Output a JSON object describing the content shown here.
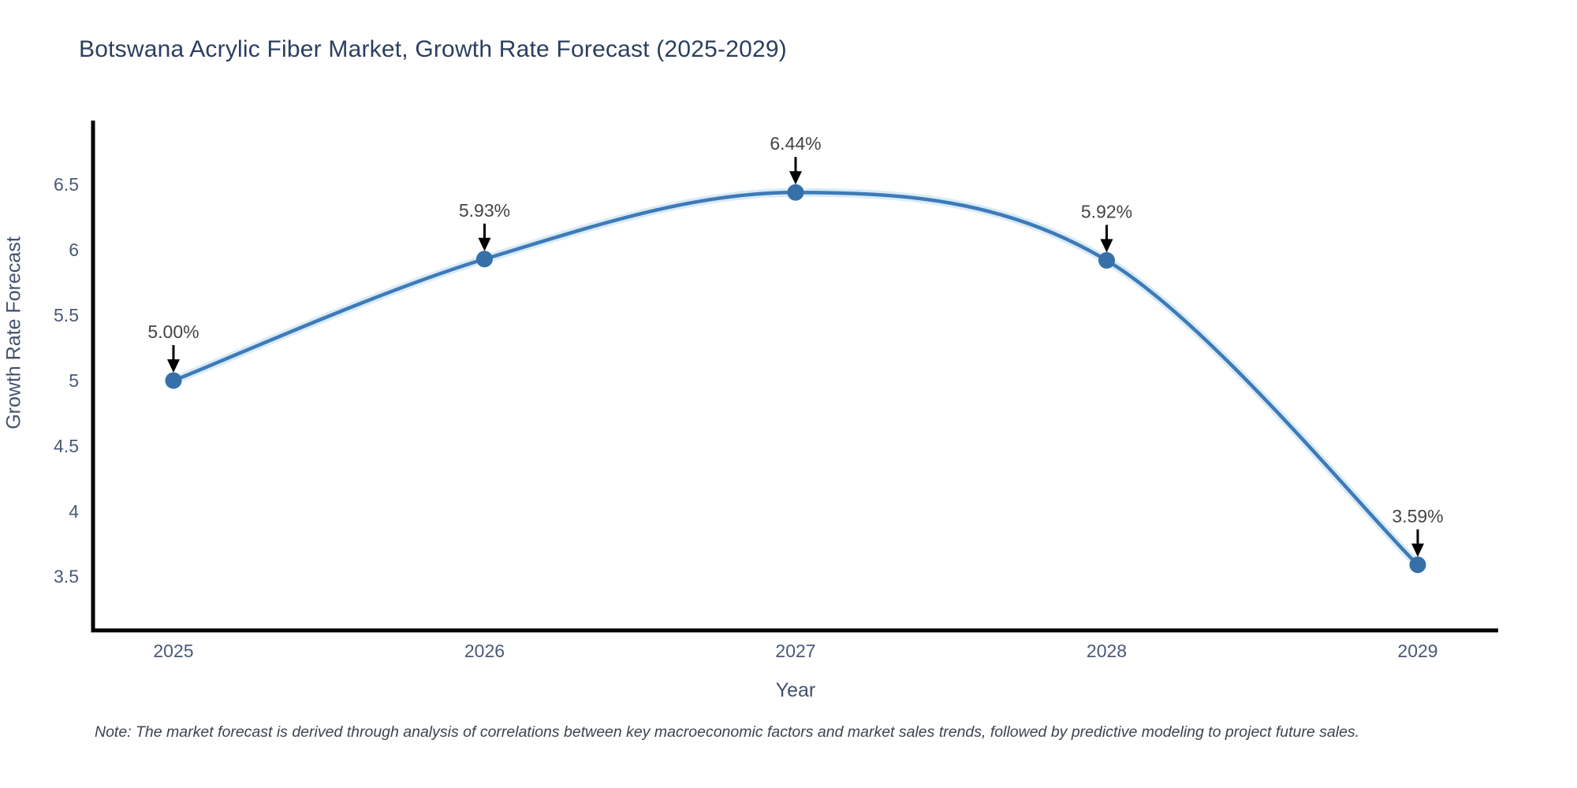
{
  "title": "Botswana Acrylic Fiber Market, Growth Rate Forecast (2025-2029)",
  "note": "Note: The market forecast is derived through analysis of correlations between key macroeconomic factors and market sales trends, followed by predictive modeling to project future sales.",
  "chart_data": {
    "type": "line",
    "title": "Botswana Acrylic Fiber Market, Growth Rate Forecast (2025-2029)",
    "xlabel": "Year",
    "ylabel": "Growth Rate Forecast",
    "categories": [
      "2025",
      "2026",
      "2027",
      "2028",
      "2029"
    ],
    "values": [
      5.0,
      5.93,
      6.44,
      5.92,
      3.59
    ],
    "point_labels": [
      "5.00%",
      "5.93%",
      "6.44%",
      "5.92%",
      "3.59%"
    ],
    "y_ticks": [
      3.5,
      4,
      4.5,
      5,
      5.5,
      6,
      6.5
    ],
    "y_tick_labels": [
      "3.5",
      "4",
      "4.5",
      "5",
      "5.5",
      "6",
      "6.5"
    ],
    "xlim": [
      -0.2585,
      4.2585
    ],
    "ylim": [
      3.088,
      6.99
    ],
    "grid": false,
    "legend": false,
    "line_shape": "spline",
    "annotation_arrows": true
  },
  "colors": {
    "line": "#3d7ab8",
    "line_halo": "#bcdaef",
    "marker": "#3570a9",
    "axis": "#000000",
    "tick_text": "#4a5878",
    "title_text": "#2a3f5f",
    "axis_title_text": "#44516d",
    "annotation_text": "#444444",
    "arrow": "#000000",
    "background": "#ffffff"
  }
}
